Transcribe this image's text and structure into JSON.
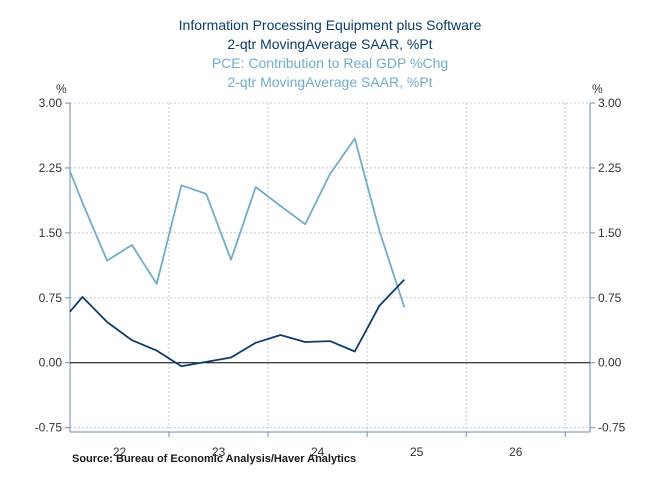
{
  "chart_data": {
    "type": "line",
    "title_lines": [
      {
        "text": "Information Processing Equipment plus Software",
        "series": 0
      },
      {
        "text": "2-qtr MovingAverage        SAAR, %Pt",
        "series": 0
      },
      {
        "text": "PCE: Contribution to Real GDP %Chg",
        "series": 1
      },
      {
        "text": "2-qtr MovingAverage     SAAR, %Pt",
        "series": 1
      }
    ],
    "unit_left": "%",
    "unit_right": "%",
    "y_ticks": [
      3.0,
      2.25,
      1.5,
      0.75,
      0.0,
      -0.75
    ],
    "y_tick_labels": [
      "3.00",
      "2.25",
      "1.50",
      "0.75",
      "0.00",
      "-0.75"
    ],
    "ylim": [
      -0.8,
      3.0
    ],
    "x_range": [
      2021.5,
      2026.75
    ],
    "x_tick_labels": [
      {
        "label": "22",
        "x": 2022.0
      },
      {
        "label": "23",
        "x": 2023.0
      },
      {
        "label": "24",
        "x": 2024.0
      },
      {
        "label": "25",
        "x": 2025.0
      },
      {
        "label": "26",
        "x": 2026.0
      }
    ],
    "x_gridlines": [
      2022.5,
      2023.5,
      2024.5,
      2025.5,
      2026.5
    ],
    "colors": {
      "series0": "#0b3d6b",
      "series1": "#6eaecb",
      "axis": "#6f8fb0",
      "grid": "#c8c8c8",
      "zero": "#000000"
    },
    "series": [
      {
        "name": "Information Processing Equipment plus Software",
        "color": "#0b3d6b",
        "x": [
          2021.5,
          2021.625,
          2021.875,
          2022.125,
          2022.375,
          2022.625,
          2022.875,
          2023.125,
          2023.375,
          2023.625,
          2023.875,
          2024.125,
          2024.375,
          2024.625,
          2024.875
        ],
        "values": [
          0.59,
          0.76,
          0.47,
          0.26,
          0.14,
          -0.04,
          0.01,
          0.06,
          0.23,
          0.32,
          0.24,
          0.25,
          0.13,
          0.66,
          0.96
        ]
      },
      {
        "name": "PCE: Contribution to Real GDP %Chg",
        "color": "#6eaecb",
        "x": [
          2021.5,
          2021.625,
          2021.875,
          2022.125,
          2022.375,
          2022.625,
          2022.875,
          2023.125,
          2023.375,
          2023.625,
          2023.875,
          2024.125,
          2024.375,
          2024.625,
          2024.875
        ],
        "values": [
          2.21,
          1.85,
          1.18,
          1.36,
          0.91,
          2.05,
          1.95,
          1.19,
          2.03,
          1.81,
          1.6,
          2.18,
          2.59,
          1.52,
          0.64
        ]
      }
    ]
  },
  "source": "Source:  Bureau of Economic Analysis/Haver Analytics"
}
